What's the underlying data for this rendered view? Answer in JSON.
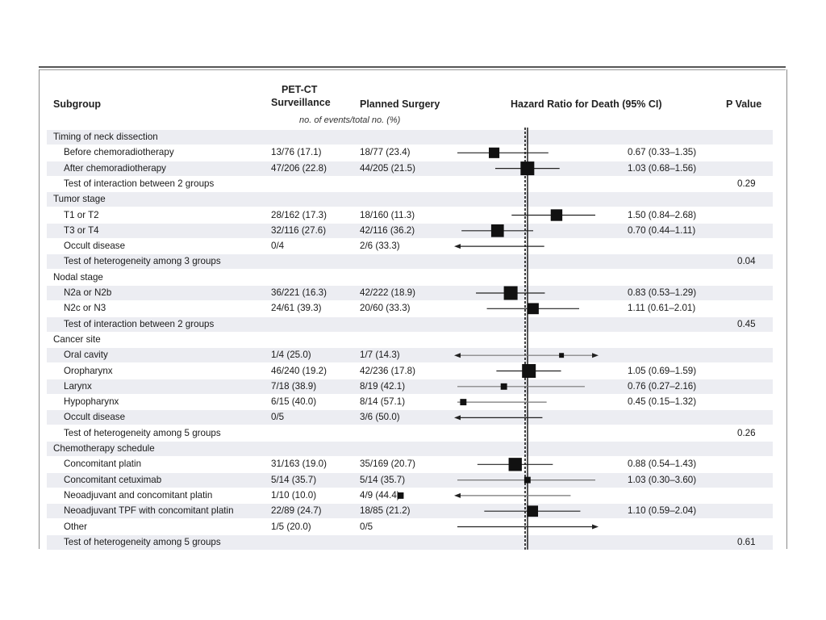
{
  "headers": {
    "subgroup": "Subgroup",
    "petct_line1": "PET-CT",
    "petct_line2": "Surveillance",
    "surgery": "Planned Surgery",
    "hazard": "Hazard Ratio for Death (95% CI)",
    "pvalue": "P Value",
    "events_note": "no. of events/total no. (%)"
  },
  "chart_data": {
    "type": "forest",
    "reference_line": 1.0,
    "columns": [
      "Subgroup",
      "PET-CT Surveillance",
      "Planned Surgery",
      "Hazard Ratio for Death (95% CI)",
      "P Value"
    ],
    "rows": [
      {
        "label": "Timing of neck dissection",
        "level": 0
      },
      {
        "label": "Before chemoradiotherapy",
        "level": 1,
        "pet": "13/76 (17.1)",
        "surg": "18/77 (23.4)",
        "hr_text": "0.67 (0.33–1.35)",
        "hr": 0.67,
        "lo": 0.33,
        "hi": 1.35,
        "weight": 0.7
      },
      {
        "label": "After chemoradiotherapy",
        "level": 1,
        "pet": "47/206 (22.8)",
        "surg": "44/205 (21.5)",
        "hr_text": "1.03 (0.68–1.56)",
        "hr": 1.03,
        "lo": 0.68,
        "hi": 1.56,
        "weight": 1.0
      },
      {
        "label": "Test of interaction between 2 groups",
        "level": 1,
        "p": "0.29"
      },
      {
        "label": "Tumor stage",
        "level": 0
      },
      {
        "label": "T1 or T2",
        "level": 1,
        "pet": "28/162 (17.3)",
        "surg": "18/160 (11.3)",
        "hr_text": "1.50 (0.84–2.68)",
        "hr": 1.5,
        "lo": 0.84,
        "hi": 2.68,
        "weight": 0.8
      },
      {
        "label": "T3 or T4",
        "level": 1,
        "pet": "32/116 (27.6)",
        "surg": "42/116 (36.2)",
        "hr_text": "0.70 (0.44–1.11)",
        "hr": 0.7,
        "lo": 0.44,
        "hi": 1.11,
        "weight": 0.9
      },
      {
        "label": "Occult disease",
        "level": 1,
        "pet": "0/4",
        "surg": "2/6 (33.3)",
        "hr_text": "",
        "lo": 0.08,
        "hi": 1.28,
        "arrow_left": true
      },
      {
        "label": "Test of heterogeneity among 3 groups",
        "level": 1,
        "p": "0.04"
      },
      {
        "label": "Nodal stage",
        "level": 0
      },
      {
        "label": "N2a or N2b",
        "level": 1,
        "pet": "36/221 (16.3)",
        "surg": "42/222 (18.9)",
        "hr_text": "0.83 (0.53–1.29)",
        "hr": 0.83,
        "lo": 0.53,
        "hi": 1.29,
        "weight": 1.0
      },
      {
        "label": "N2c or N3",
        "level": 1,
        "pet": "24/61 (39.3)",
        "surg": "20/60 (33.3)",
        "hr_text": "1.11 (0.61–2.01)",
        "hr": 1.11,
        "lo": 0.61,
        "hi": 2.01,
        "weight": 0.75
      },
      {
        "label": "Test of interaction between 2 groups",
        "level": 1,
        "p": "0.45"
      },
      {
        "label": "Cancer site",
        "level": 0
      },
      {
        "label": "Oral cavity",
        "level": 1,
        "pet": "1/4 (25.0)",
        "surg": "1/7 (14.3)",
        "hr_text": "",
        "hr": 1.6,
        "lo": 0.08,
        "hi": 12.0,
        "arrow_left": true,
        "arrow_right": true,
        "weight": 0.15
      },
      {
        "label": "Oropharynx",
        "level": 1,
        "pet": "46/240 (19.2)",
        "surg": "42/236 (17.8)",
        "hr_text": "1.05 (0.69–1.59)",
        "hr": 1.05,
        "lo": 0.69,
        "hi": 1.59,
        "weight": 1.0
      },
      {
        "label": "Larynx",
        "level": 1,
        "pet": "7/18 (38.9)",
        "surg": "8/19 (42.1)",
        "hr_text": "0.76 (0.27–2.16)",
        "hr": 0.76,
        "lo": 0.27,
        "hi": 2.16,
        "weight": 0.3
      },
      {
        "label": "Hypopharynx",
        "level": 1,
        "pet": "6/15 (40.0)",
        "surg": "8/14 (57.1)",
        "hr_text": "0.45 (0.15–1.32)",
        "hr": 0.45,
        "lo": 0.15,
        "hi": 1.32,
        "weight": 0.3
      },
      {
        "label": "Occult disease",
        "level": 1,
        "pet": "0/5",
        "surg": "3/6 (50.0)",
        "hr_text": "",
        "lo": 0.08,
        "hi": 1.25,
        "arrow_left": true
      },
      {
        "label": "Test of heterogeneity among 5 groups",
        "level": 1,
        "p": "0.26"
      },
      {
        "label": "Chemotherapy schedule",
        "level": 0
      },
      {
        "label": "Concomitant platin",
        "level": 1,
        "pet": "31/163 (19.0)",
        "surg": "35/169 (20.7)",
        "hr_text": "0.88 (0.54–1.43)",
        "hr": 0.88,
        "lo": 0.54,
        "hi": 1.43,
        "weight": 0.95
      },
      {
        "label": "Concomitant cetuximab",
        "level": 1,
        "pet": "5/14 (35.7)",
        "surg": "5/14 (35.7)",
        "hr_text": "1.03 (0.30–3.60)",
        "hr": 1.03,
        "lo": 0.3,
        "hi": 3.6,
        "weight": 0.3
      },
      {
        "label": "Neoadjuvant and concomitant platin",
        "level": 1,
        "pet": "1/10 (10.0)",
        "surg": "4/9 (44.4)",
        "hr_text": "",
        "hr": 0.2,
        "lo": 0.08,
        "hi": 1.8,
        "arrow_left": true,
        "weight": 0.3
      },
      {
        "label": "Neoadjuvant TPF with concomitant platin",
        "level": 1,
        "pet": "22/89 (24.7)",
        "surg": "18/85 (21.2)",
        "hr_text": "1.10 (0.59–2.04)",
        "hr": 1.1,
        "lo": 0.59,
        "hi": 2.04,
        "weight": 0.75
      },
      {
        "label": "Other",
        "level": 1,
        "pet": "1/5 (20.0)",
        "surg": "0/5",
        "hr_text": "",
        "lo": 0.3,
        "hi": 12.0,
        "arrow_right": true
      },
      {
        "label": "Test of heterogeneity among 5 groups",
        "level": 1,
        "p": "0.61"
      }
    ]
  }
}
